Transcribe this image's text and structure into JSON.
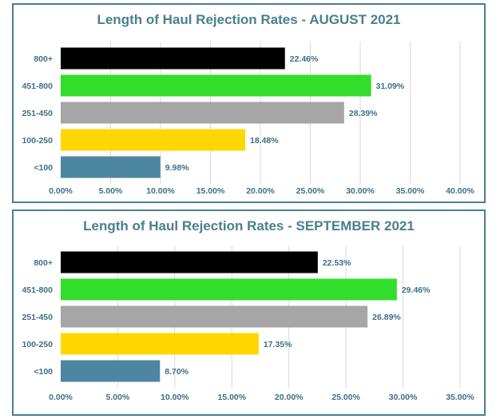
{
  "chart_data": [
    {
      "type": "bar",
      "orientation": "horizontal",
      "title": "Length of Haul Rejection Rates - AUGUST 2021",
      "categories": [
        "800+",
        "451-800",
        "251-450",
        "100-250",
        "<100"
      ],
      "values": [
        22.46,
        31.09,
        28.39,
        18.48,
        9.98
      ],
      "value_labels": [
        "22.46%",
        "31.09%",
        "28.39%",
        "18.48%",
        "9.98%"
      ],
      "colors": [
        "#000000",
        "#33dd2b",
        "#a6a6a6",
        "#ffd700",
        "#4d86a0"
      ],
      "xlim": [
        0,
        40
      ],
      "xticks": [
        0,
        5,
        10,
        15,
        20,
        25,
        30,
        35,
        40
      ],
      "xtick_labels": [
        "0.00%",
        "5.00%",
        "10.00%",
        "15.00%",
        "20.00%",
        "25.00%",
        "30.00%",
        "35.00%",
        "40.00%"
      ],
      "grid": true,
      "xlabel": "",
      "ylabel": ""
    },
    {
      "type": "bar",
      "orientation": "horizontal",
      "title": "Length of Haul Rejection Rates - SEPTEMBER 2021",
      "categories": [
        "800+",
        "451-800",
        "251-450",
        "100-250",
        "<100"
      ],
      "values": [
        22.53,
        29.46,
        26.89,
        17.35,
        8.7
      ],
      "value_labels": [
        "22.53%",
        "29.46%",
        "26.89%",
        "17.35%",
        "8.70%"
      ],
      "colors": [
        "#000000",
        "#33dd2b",
        "#a6a6a6",
        "#ffd700",
        "#4d86a0"
      ],
      "xlim": [
        0,
        35
      ],
      "xticks": [
        0,
        5,
        10,
        15,
        20,
        25,
        30,
        35
      ],
      "xtick_labels": [
        "0.00%",
        "5.00%",
        "10.00%",
        "15.00%",
        "20.00%",
        "25.00%",
        "30.00%",
        "35.00%"
      ],
      "grid": true,
      "xlabel": "",
      "ylabel": ""
    }
  ]
}
